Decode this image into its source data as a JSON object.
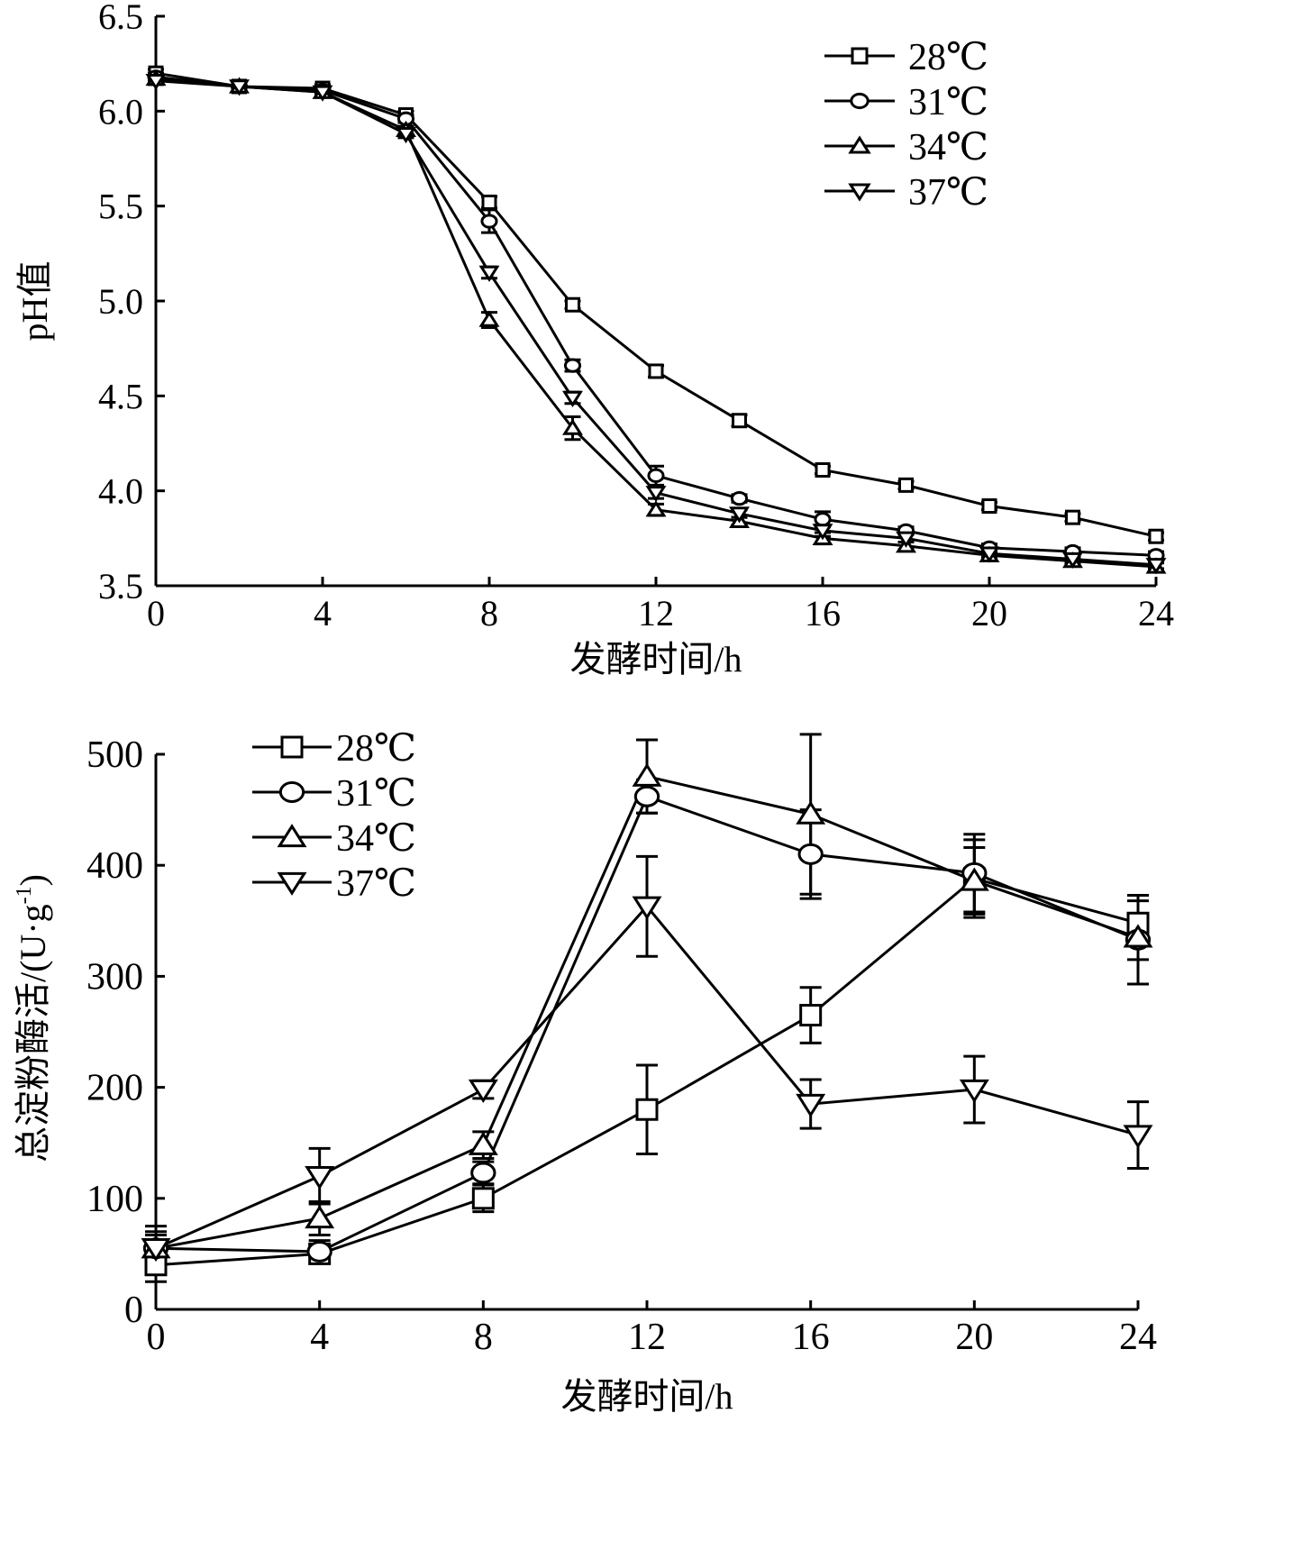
{
  "chart_data": [
    {
      "id": "ph",
      "type": "line",
      "xlabel": "发酵时间/h",
      "ylabel": "pH值",
      "xlim": [
        0,
        24
      ],
      "ylim": [
        3.5,
        6.5
      ],
      "x_ticks": [
        "0",
        "4",
        "8",
        "12",
        "16",
        "20",
        "24"
      ],
      "y_ticks": [
        "3.5",
        "4.0",
        "4.5",
        "5.0",
        "5.5",
        "6.0",
        "6.5"
      ],
      "legend_position": "top-right",
      "grid": false,
      "x": [
        0,
        2,
        4,
        6,
        8,
        10,
        12,
        14,
        16,
        18,
        20,
        22,
        24
      ],
      "series": [
        {
          "name": "28℃",
          "marker": "square",
          "values": [
            6.2,
            6.13,
            6.12,
            5.98,
            5.52,
            4.98,
            4.63,
            4.37,
            4.11,
            4.03,
            3.92,
            3.86,
            3.76
          ],
          "errors": [
            0.02,
            0.02,
            0.02,
            0.02,
            0.03,
            0.02,
            0.03,
            0.03,
            0.02,
            0.02,
            0.02,
            0.02,
            0.02
          ]
        },
        {
          "name": "31℃",
          "marker": "circle",
          "values": [
            6.18,
            6.13,
            6.11,
            5.96,
            5.42,
            4.66,
            4.08,
            3.96,
            3.85,
            3.79,
            3.7,
            3.68,
            3.66
          ],
          "errors": [
            0.02,
            0.02,
            0.02,
            0.02,
            0.06,
            0.03,
            0.05,
            0.02,
            0.04,
            0.02,
            0.02,
            0.02,
            0.02
          ]
        },
        {
          "name": "34℃",
          "marker": "triangle-up",
          "values": [
            6.17,
            6.13,
            6.1,
            5.9,
            4.9,
            4.33,
            3.9,
            3.84,
            3.75,
            3.71,
            3.66,
            3.63,
            3.6
          ],
          "errors": [
            0.02,
            0.02,
            0.02,
            0.02,
            0.04,
            0.06,
            0.03,
            0.02,
            0.03,
            0.02,
            0.02,
            0.02,
            0.02
          ]
        },
        {
          "name": "37℃",
          "marker": "triangle-down",
          "values": [
            6.16,
            6.13,
            6.1,
            5.88,
            5.15,
            4.49,
            3.99,
            3.88,
            3.79,
            3.75,
            3.67,
            3.64,
            3.61
          ],
          "errors": [
            0.02,
            0.02,
            0.02,
            0.02,
            0.03,
            0.03,
            0.03,
            0.02,
            0.03,
            0.02,
            0.02,
            0.02,
            0.02
          ]
        }
      ]
    },
    {
      "id": "amylase",
      "type": "line",
      "xlabel": "发酵时间/h",
      "ylabel": "总淀粉酶活/(U·g",
      "ylabel_sup": "-1",
      "ylabel_close": ")",
      "xlim": [
        0,
        24
      ],
      "ylim": [
        0,
        500
      ],
      "x_ticks": [
        "0",
        "4",
        "8",
        "12",
        "16",
        "20",
        "24"
      ],
      "y_ticks": [
        "0",
        "100",
        "200",
        "300",
        "400",
        "500"
      ],
      "legend_position": "top-left",
      "grid": false,
      "x": [
        0,
        4,
        8,
        12,
        16,
        20,
        24
      ],
      "series": [
        {
          "name": "28℃",
          "marker": "square",
          "values": [
            40,
            50,
            100,
            180,
            265,
            388,
            348
          ],
          "errors": [
            15,
            8,
            12,
            40,
            25,
            35,
            20
          ]
        },
        {
          "name": "31℃",
          "marker": "circle",
          "values": [
            55,
            52,
            123,
            462,
            410,
            393,
            333
          ],
          "errors": [
            12,
            10,
            10,
            15,
            40,
            35,
            40
          ]
        },
        {
          "name": "34℃",
          "marker": "triangle-up",
          "values": [
            55,
            82,
            148,
            480,
            446,
            386,
            335
          ],
          "errors": [
            20,
            15,
            12,
            33,
            72,
            30,
            20
          ]
        },
        {
          "name": "37℃",
          "marker": "triangle-down",
          "values": [
            55,
            120,
            198,
            363,
            185,
            198,
            157
          ],
          "errors": [
            15,
            25,
            8,
            45,
            22,
            30,
            30
          ]
        }
      ]
    }
  ]
}
